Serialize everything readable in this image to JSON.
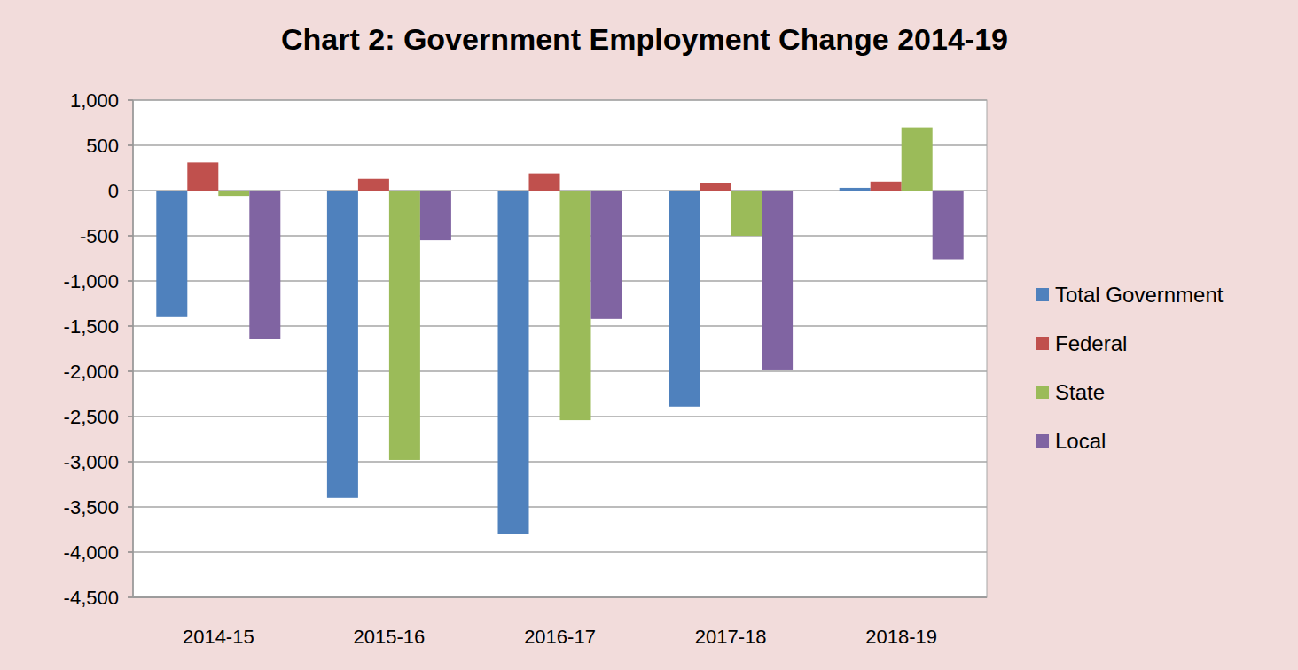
{
  "chart_data": {
    "type": "bar",
    "title": "Chart 2: Government Employment Change 2014-19",
    "categories": [
      "2014-15",
      "2015-16",
      "2016-17",
      "2017-18",
      "2018-19"
    ],
    "series": [
      {
        "name": "Total Government",
        "color": "#4f81bd",
        "values": [
          -1400,
          -3400,
          -3800,
          -2390,
          30
        ]
      },
      {
        "name": "Federal",
        "color": "#c0504d",
        "values": [
          310,
          130,
          190,
          80,
          100
        ]
      },
      {
        "name": "State",
        "color": "#9bbb59",
        "values": [
          -60,
          -2980,
          -2540,
          -500,
          700
        ]
      },
      {
        "name": "Local",
        "color": "#8064a2",
        "values": [
          -1640,
          -550,
          -1420,
          -1980,
          -760
        ]
      }
    ],
    "ylim": [
      -4500,
      1000
    ],
    "yticks": [
      {
        "value": -4500,
        "label": "-4,500"
      },
      {
        "value": -4000,
        "label": "-4,000"
      },
      {
        "value": -3500,
        "label": "-3,500"
      },
      {
        "value": -3000,
        "label": "-3,000"
      },
      {
        "value": -2500,
        "label": "-2,500"
      },
      {
        "value": -2000,
        "label": "-2,000"
      },
      {
        "value": -1500,
        "label": "-1,500"
      },
      {
        "value": -1000,
        "label": "-1,000"
      },
      -500,
      0,
      500,
      {
        "value": 1000,
        "label": "1,000"
      }
    ],
    "grid": true,
    "legend": "right"
  }
}
